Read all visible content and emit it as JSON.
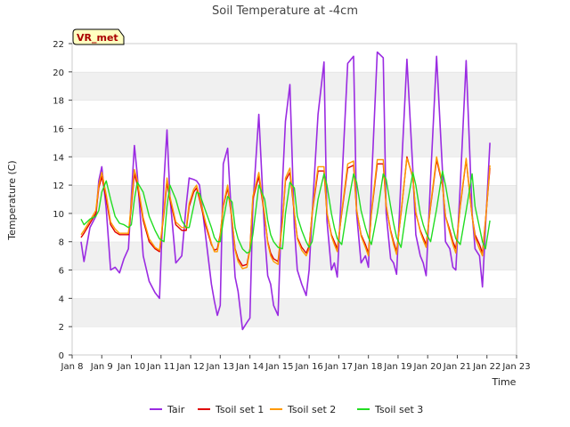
{
  "chart_data": {
    "type": "line",
    "title": "Soil Temperature at -4cm",
    "xlabel": "Time",
    "ylabel": "Temperature (C)",
    "badge": "VR_met",
    "xlim": [
      8,
      23
    ],
    "ylim": [
      0,
      22
    ],
    "x_ticks": [
      {
        "value": 8,
        "label": "Jan 8"
      },
      {
        "value": 9,
        "label": "Jan 9"
      },
      {
        "value": 10,
        "label": "Jan 10"
      },
      {
        "value": 11,
        "label": "Jan 11"
      },
      {
        "value": 12,
        "label": "Jan 12"
      },
      {
        "value": 13,
        "label": "Jan 13"
      },
      {
        "value": 14,
        "label": "Jan 14"
      },
      {
        "value": 15,
        "label": "Jan 15"
      },
      {
        "value": 16,
        "label": "Jan 16"
      },
      {
        "value": 17,
        "label": "Jan 17"
      },
      {
        "value": 18,
        "label": "Jan 18"
      },
      {
        "value": 19,
        "label": "Jan 19"
      },
      {
        "value": 20,
        "label": "Jan 20"
      },
      {
        "value": 21,
        "label": "Jan 21"
      },
      {
        "value": 22,
        "label": "Jan 22"
      },
      {
        "value": 23,
        "label": "Jan 23"
      }
    ],
    "y_ticks": [
      0,
      2,
      4,
      6,
      8,
      10,
      12,
      14,
      16,
      18,
      20,
      22
    ],
    "grid": "horizontal bands",
    "legend_position": "bottom",
    "series": [
      {
        "name": "Tair",
        "color": "#9a2be2",
        "x": [
          8.3,
          8.4,
          8.6,
          8.8,
          8.9,
          9.0,
          9.15,
          9.3,
          9.45,
          9.6,
          9.75,
          9.9,
          10.0,
          10.1,
          10.2,
          10.4,
          10.6,
          10.8,
          10.95,
          11.1,
          11.2,
          11.3,
          11.5,
          11.7,
          11.85,
          11.95,
          12.1,
          12.2,
          12.3,
          12.5,
          12.7,
          12.8,
          12.9,
          13.0,
          13.1,
          13.25,
          13.4,
          13.5,
          13.6,
          13.75,
          13.9,
          14.0,
          14.1,
          14.3,
          14.5,
          14.6,
          14.7,
          14.8,
          14.95,
          15.1,
          15.2,
          15.35,
          15.5,
          15.6,
          15.75,
          15.9,
          16.0,
          16.1,
          16.3,
          16.5,
          16.6,
          16.75,
          16.85,
          16.95,
          17.1,
          17.3,
          17.5,
          17.6,
          17.75,
          17.9,
          18.0,
          18.1,
          18.3,
          18.5,
          18.6,
          18.75,
          18.85,
          18.95,
          19.1,
          19.3,
          19.5,
          19.6,
          19.75,
          19.85,
          19.95,
          20.1,
          20.3,
          20.5,
          20.6,
          20.75,
          20.85,
          20.95,
          21.1,
          21.3,
          21.5,
          21.6,
          21.75,
          21.85,
          21.95,
          22.1
        ],
        "y": [
          8.0,
          6.6,
          9.0,
          9.8,
          12.3,
          13.3,
          10.3,
          6.0,
          6.2,
          5.8,
          6.8,
          7.5,
          11.2,
          14.8,
          12.7,
          7.0,
          5.2,
          4.4,
          4.0,
          12.3,
          15.9,
          11.2,
          6.5,
          7.0,
          10.6,
          12.5,
          12.4,
          12.3,
          12.0,
          8.5,
          5.0,
          3.8,
          2.8,
          3.5,
          13.5,
          14.6,
          9.0,
          5.5,
          4.5,
          1.8,
          2.3,
          2.6,
          10.5,
          17.0,
          8.5,
          5.6,
          5.0,
          3.5,
          2.8,
          12.2,
          16.5,
          19.1,
          9.0,
          6.0,
          5.0,
          4.2,
          6.0,
          10.0,
          17.0,
          20.7,
          9.5,
          6.0,
          6.5,
          5.5,
          12.0,
          20.6,
          21.1,
          10.0,
          6.5,
          7.0,
          6.2,
          12.0,
          21.4,
          21.0,
          10.0,
          6.8,
          6.5,
          5.7,
          12.5,
          20.9,
          13.0,
          8.5,
          7.0,
          6.5,
          5.6,
          12.5,
          21.1,
          13.0,
          8.0,
          7.5,
          6.2,
          6.0,
          12.0,
          20.8,
          10.0,
          7.5,
          7.0,
          4.8,
          9.0,
          15.0
        ]
      },
      {
        "name": "Tsoil set 1",
        "color": "#e00000",
        "x": [
          8.3,
          8.4,
          8.6,
          8.8,
          8.9,
          9.0,
          9.15,
          9.3,
          9.45,
          9.6,
          9.75,
          9.9,
          10.0,
          10.1,
          10.2,
          10.4,
          10.6,
          10.8,
          10.95,
          11.1,
          11.2,
          11.3,
          11.5,
          11.7,
          11.85,
          11.95,
          12.1,
          12.2,
          12.3,
          12.5,
          12.7,
          12.8,
          12.9,
          13.0,
          13.1,
          13.25,
          13.4,
          13.5,
          13.6,
          13.75,
          13.9,
          14.0,
          14.1,
          14.3,
          14.5,
          14.6,
          14.7,
          14.8,
          14.95,
          15.1,
          15.2,
          15.35,
          15.5,
          15.6,
          15.75,
          15.9,
          16.0,
          16.1,
          16.3,
          16.5,
          16.6,
          16.75,
          16.85,
          16.95,
          17.1,
          17.3,
          17.5,
          17.6,
          17.75,
          17.9,
          18.0,
          18.1,
          18.3,
          18.5,
          18.6,
          18.75,
          18.85,
          18.95,
          19.1,
          19.3,
          19.5,
          19.6,
          19.75,
          19.85,
          19.95,
          20.1,
          20.3,
          20.5,
          20.6,
          20.75,
          20.85,
          20.95,
          21.1,
          21.3,
          21.5,
          21.6,
          21.75,
          21.85,
          21.95,
          22.1
        ],
        "y": [
          8.3,
          8.6,
          9.3,
          10.0,
          11.8,
          12.6,
          11.0,
          9.2,
          8.7,
          8.5,
          8.5,
          8.5,
          10.5,
          12.8,
          12.0,
          9.5,
          8.0,
          7.5,
          7.3,
          10.0,
          12.2,
          11.0,
          9.2,
          8.8,
          8.8,
          10.5,
          11.5,
          11.8,
          11.0,
          9.2,
          7.8,
          7.4,
          7.5,
          8.5,
          10.5,
          11.8,
          9.5,
          7.5,
          6.8,
          6.3,
          6.4,
          7.5,
          11.0,
          12.6,
          9.8,
          8.0,
          7.2,
          6.8,
          6.6,
          9.5,
          12.3,
          12.9,
          10.0,
          8.3,
          7.6,
          7.2,
          7.7,
          10.0,
          13.0,
          13.0,
          10.0,
          8.5,
          8.0,
          7.5,
          10.0,
          13.2,
          13.4,
          10.2,
          8.5,
          7.8,
          7.2,
          10.0,
          13.5,
          13.5,
          10.5,
          8.8,
          8.0,
          7.3,
          10.0,
          14.0,
          12.5,
          10.0,
          8.8,
          8.3,
          7.8,
          10.5,
          13.8,
          12.0,
          9.8,
          8.8,
          8.0,
          7.5,
          10.5,
          13.8,
          9.8,
          8.5,
          7.8,
          7.2,
          9.5,
          13.2
        ]
      },
      {
        "name": "Tsoil set 2",
        "color": "#ff9a00",
        "x": [
          8.3,
          8.4,
          8.6,
          8.8,
          8.9,
          9.0,
          9.15,
          9.3,
          9.45,
          9.6,
          9.75,
          9.9,
          10.0,
          10.1,
          10.2,
          10.4,
          10.6,
          10.8,
          10.95,
          11.1,
          11.2,
          11.3,
          11.5,
          11.7,
          11.85,
          11.95,
          12.1,
          12.2,
          12.3,
          12.5,
          12.7,
          12.8,
          12.9,
          13.0,
          13.1,
          13.25,
          13.4,
          13.5,
          13.6,
          13.75,
          13.9,
          14.0,
          14.1,
          14.3,
          14.5,
          14.6,
          14.7,
          14.8,
          14.95,
          15.1,
          15.2,
          15.35,
          15.5,
          15.6,
          15.75,
          15.9,
          16.0,
          16.1,
          16.3,
          16.5,
          16.6,
          16.75,
          16.85,
          16.95,
          17.1,
          17.3,
          17.5,
          17.6,
          17.75,
          17.9,
          18.0,
          18.1,
          18.3,
          18.5,
          18.6,
          18.75,
          18.85,
          18.95,
          19.1,
          19.3,
          19.5,
          19.6,
          19.75,
          19.85,
          19.95,
          20.1,
          20.3,
          20.5,
          20.6,
          20.75,
          20.85,
          20.95,
          21.1,
          21.3,
          21.5,
          21.6,
          21.75,
          21.85,
          21.95,
          22.1
        ],
        "y": [
          8.5,
          8.8,
          9.5,
          10.2,
          12.0,
          12.9,
          11.3,
          9.4,
          8.9,
          8.6,
          8.6,
          8.6,
          10.8,
          13.1,
          12.3,
          9.7,
          8.2,
          7.6,
          7.4,
          10.2,
          12.5,
          11.2,
          9.4,
          9.0,
          9.0,
          10.7,
          11.7,
          12.0,
          11.2,
          9.4,
          7.9,
          7.3,
          7.3,
          8.4,
          10.6,
          12.0,
          9.6,
          7.4,
          6.6,
          6.1,
          6.2,
          7.4,
          11.2,
          12.9,
          9.9,
          7.9,
          7.0,
          6.6,
          6.4,
          9.4,
          12.5,
          13.2,
          10.1,
          8.2,
          7.4,
          7.0,
          7.5,
          10.1,
          13.3,
          13.3,
          10.1,
          8.4,
          7.8,
          7.3,
          10.1,
          13.5,
          13.7,
          10.3,
          8.4,
          7.6,
          7.0,
          10.1,
          13.8,
          13.8,
          10.6,
          8.7,
          7.8,
          7.1,
          10.1,
          13.9,
          12.6,
          10.1,
          8.7,
          8.1,
          7.6,
          10.6,
          14.0,
          12.1,
          9.8,
          8.6,
          7.8,
          7.2,
          10.6,
          13.9,
          9.8,
          8.3,
          7.5,
          7.0,
          9.4,
          13.4
        ]
      },
      {
        "name": "Tsoil set 3",
        "color": "#22dd22",
        "x": [
          8.3,
          8.4,
          8.6,
          8.8,
          8.9,
          9.0,
          9.15,
          9.3,
          9.45,
          9.6,
          9.75,
          9.9,
          10.0,
          10.1,
          10.2,
          10.4,
          10.6,
          10.8,
          10.95,
          11.1,
          11.2,
          11.3,
          11.5,
          11.7,
          11.85,
          11.95,
          12.1,
          12.2,
          12.3,
          12.5,
          12.7,
          12.8,
          12.9,
          13.0,
          13.1,
          13.25,
          13.4,
          13.5,
          13.6,
          13.75,
          13.9,
          14.0,
          14.1,
          14.3,
          14.5,
          14.6,
          14.7,
          14.8,
          14.95,
          15.1,
          15.2,
          15.35,
          15.5,
          15.6,
          15.75,
          15.9,
          16.0,
          16.1,
          16.3,
          16.5,
          16.6,
          16.75,
          16.85,
          16.95,
          17.1,
          17.3,
          17.5,
          17.6,
          17.75,
          17.9,
          18.0,
          18.1,
          18.3,
          18.5,
          18.6,
          18.75,
          18.85,
          18.95,
          19.1,
          19.3,
          19.5,
          19.6,
          19.75,
          19.85,
          19.95,
          20.1,
          20.3,
          20.5,
          20.6,
          20.75,
          20.85,
          20.95,
          21.1,
          21.3,
          21.5,
          21.6,
          21.75,
          21.85,
          21.95,
          22.1
        ],
        "y": [
          9.6,
          9.2,
          9.6,
          9.8,
          10.2,
          11.5,
          12.3,
          11.0,
          9.8,
          9.3,
          9.2,
          9.0,
          9.2,
          11.0,
          12.2,
          11.5,
          9.8,
          8.8,
          8.2,
          8.0,
          10.5,
          12.0,
          11.0,
          9.5,
          9.0,
          9.0,
          10.5,
          11.5,
          11.4,
          10.2,
          9.0,
          8.3,
          8.0,
          8.0,
          9.5,
          11.2,
          10.8,
          9.0,
          8.2,
          7.5,
          7.2,
          7.3,
          8.5,
          12.0,
          11.0,
          9.5,
          8.5,
          8.0,
          7.6,
          7.5,
          10.0,
          12.2,
          11.8,
          9.8,
          8.8,
          8.0,
          7.6,
          8.0,
          11.0,
          12.8,
          12.0,
          10.0,
          9.0,
          8.2,
          7.8,
          10.5,
          12.8,
          12.2,
          10.2,
          9.0,
          8.3,
          7.8,
          10.0,
          12.8,
          12.4,
          10.5,
          9.3,
          8.3,
          7.6,
          10.5,
          12.9,
          12.0,
          10.0,
          9.2,
          8.6,
          8.0,
          10.3,
          13.0,
          12.0,
          10.2,
          9.0,
          8.2,
          7.8,
          10.2,
          12.8,
          10.5,
          9.0,
          8.0,
          7.5,
          9.5
        ]
      }
    ]
  }
}
